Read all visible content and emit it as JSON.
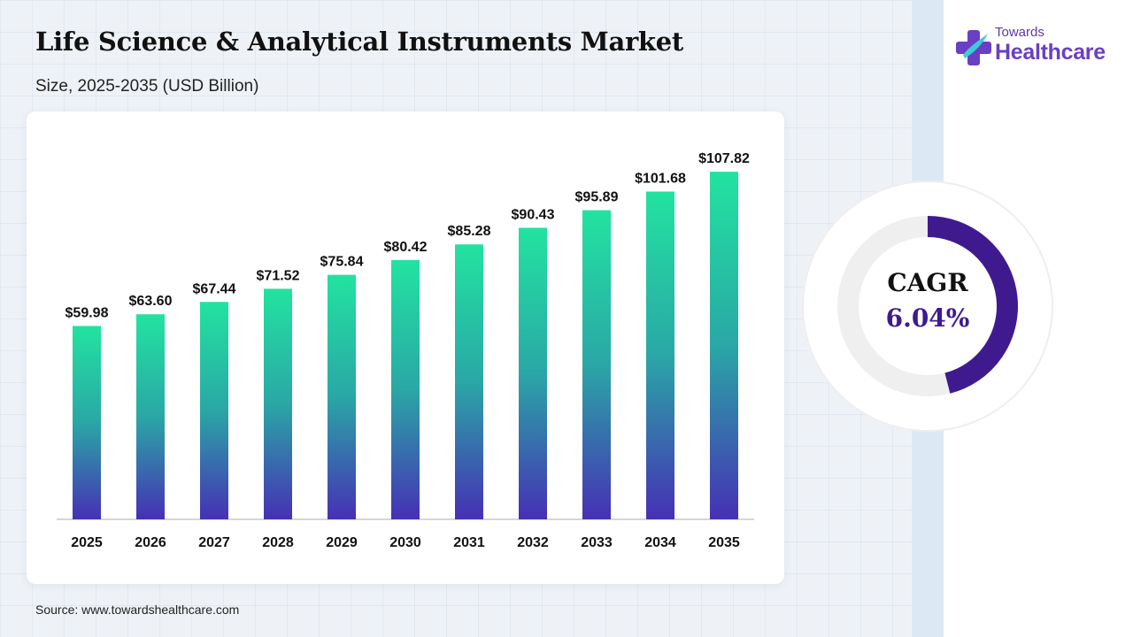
{
  "header": {
    "title": "Life Science & Analytical Instruments Market",
    "subtitle": "Size, 2025-2035 (USD Billion)"
  },
  "brand": {
    "name_top": "Towards",
    "name_bottom": "Healthcare"
  },
  "cagr": {
    "label": "CAGR",
    "value": "6.04%",
    "fraction": 0.46,
    "ring_color": "#3f1a8f",
    "track_color": "#efefef"
  },
  "source": "Source: www.towardshealthcare.com",
  "colors": {
    "bar_top": "#22e3a0",
    "bar_mid": "#2aa7a6",
    "bar_bottom": "#4630b5"
  },
  "chart_data": {
    "type": "bar",
    "categories": [
      "2025",
      "2026",
      "2027",
      "2028",
      "2029",
      "2030",
      "2031",
      "2032",
      "2033",
      "2034",
      "2035"
    ],
    "values": [
      59.98,
      63.6,
      67.44,
      71.52,
      75.84,
      80.42,
      85.28,
      90.43,
      95.89,
      101.68,
      107.82
    ],
    "data_labels": [
      "$59.98",
      "$63.60",
      "$67.44",
      "$71.52",
      "$75.84",
      "$80.42",
      "$85.28",
      "$90.43",
      "$95.89",
      "$101.68",
      "$107.82"
    ],
    "title": "Life Science & Analytical Instruments Market",
    "subtitle": "Size, 2025-2035 (USD Billion)",
    "xlabel": "",
    "ylabel": "",
    "ylim": [
      0,
      110
    ],
    "grid": false,
    "legend": "none"
  }
}
